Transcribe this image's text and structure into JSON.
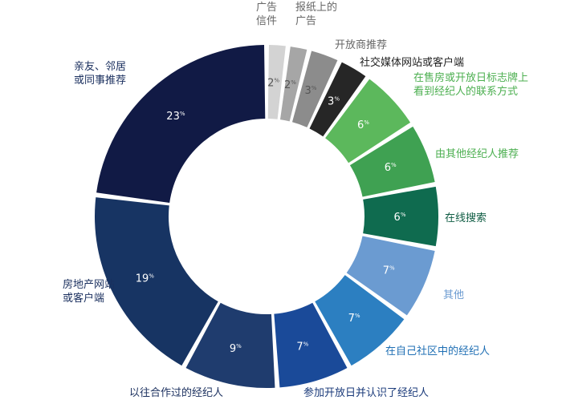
{
  "chart_data": {
    "type": "pie",
    "variant": "donut",
    "legend": "none",
    "value_unit": "%",
    "categories": [
      "广告信件",
      "报纸上的广告",
      "开放商推荐",
      "社交媒体网站或客户端",
      "在售房或开放日标志牌上看到经纪人的联系方式",
      "由其他经纪人推荐",
      "在线搜索",
      "其他",
      "在自己社区中的经纪人",
      "参加开放日并认识了经纪人",
      "以往合作过的经纪人",
      "房地产网站或客户端",
      "亲友、邻居或同事推荐"
    ],
    "values": [
      2,
      2,
      3,
      3,
      6,
      6,
      6,
      7,
      7,
      7,
      9,
      19,
      23
    ],
    "value_labels": [
      "2",
      "2",
      "3",
      "3",
      "6",
      "6",
      "6",
      "7",
      "7",
      "7",
      "9",
      "19",
      "23"
    ],
    "label_lines": [
      [
        "广告",
        "信件"
      ],
      [
        "报纸上的",
        "广告"
      ],
      [
        "开放商推荐"
      ],
      [
        "社交媒体网站或客户端"
      ],
      [
        "在售房或开放日标志牌上",
        "看到经纪人的联系方式"
      ],
      [
        "由其他经纪人推荐"
      ],
      [
        "在线搜索"
      ],
      [
        "其他"
      ],
      [
        "在自己社区中的经纪人"
      ],
      [
        "参加开放日并认识了经纪人"
      ],
      [
        "以往合作过的经纪人"
      ],
      [
        "房地产网站",
        "或客户端"
      ],
      [
        "亲友、邻居",
        "或同事推荐"
      ]
    ],
    "colors": [
      "#d3d3d3",
      "#a6a6a6",
      "#8c8c8c",
      "#262626",
      "#5cb85c",
      "#3fa152",
      "#0f6b4f",
      "#6b9bd1",
      "#2c7fc1",
      "#1a4a99",
      "#1f3c6e",
      "#173463",
      "#111a45"
    ],
    "label_colors": [
      "#666666",
      "#666666",
      "#666666",
      "#222222",
      "#4caf50",
      "#4caf50",
      "#0f5c43",
      "#6b9bd1",
      "#1f6fb4",
      "#1a3a7a",
      "#1a2f5e",
      "#1a2f5e",
      "#1a2f5e"
    ]
  }
}
